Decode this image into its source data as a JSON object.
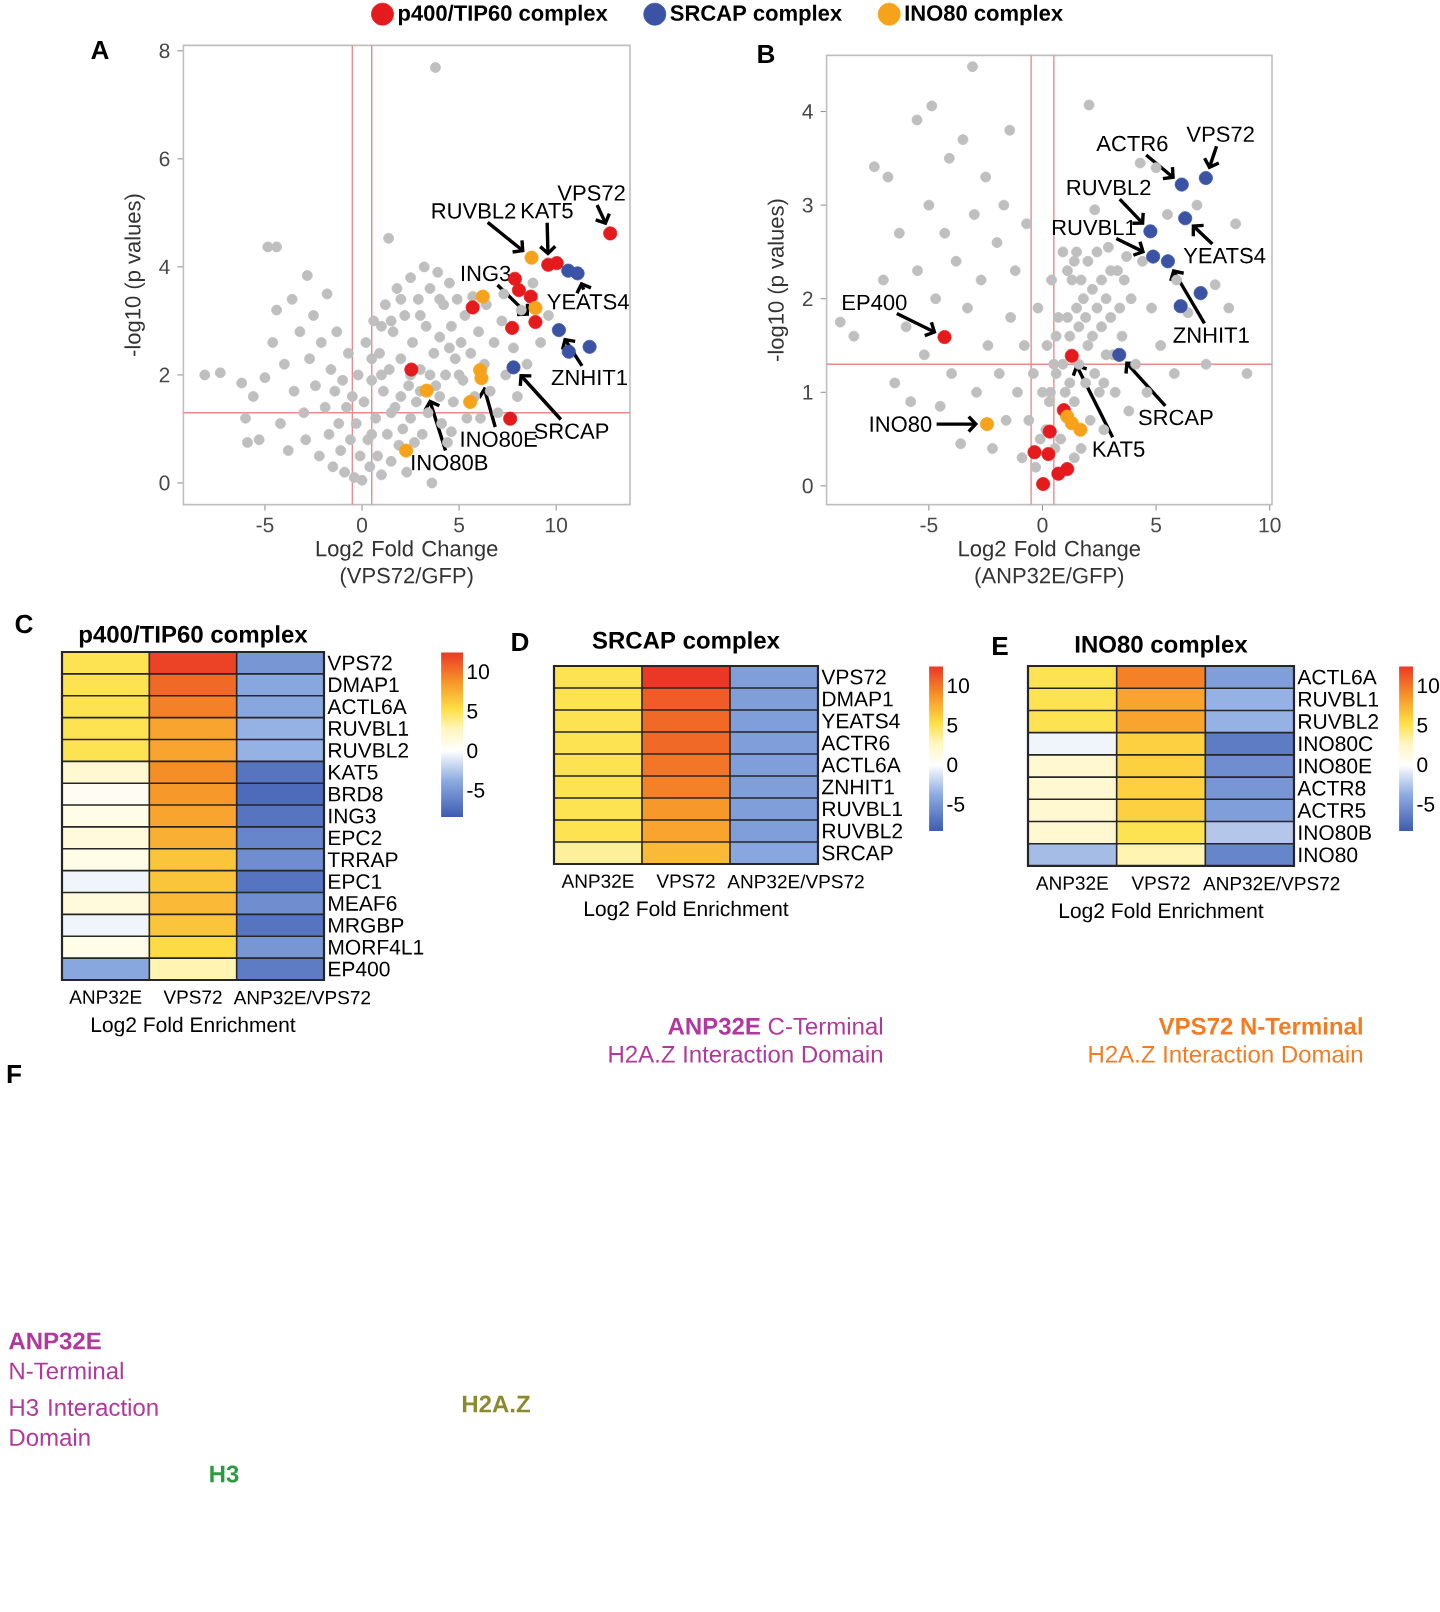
{
  "chart_data": [
    {
      "type": "scatter",
      "xlabel": "Log2 Fold Change (VPS72/GFP)",
      "ylabel": "-log10 (p values)",
      "xlim": [
        -9.2,
        13.8
      ],
      "ylim": [
        -0.4,
        8.1
      ],
      "xticks": [
        -5,
        0,
        5,
        10
      ],
      "yticks": [
        0,
        2,
        4,
        6,
        8
      ],
      "marker": "circle",
      "legend": "top",
      "ref_lines": [
        {
          "axis": "x",
          "value": -0.5,
          "color": "#f08a8a"
        },
        {
          "axis": "x",
          "value": 0.5,
          "color": "#f08a8a"
        },
        {
          "axis": "y",
          "value": 1.3,
          "color": "#f08a8a"
        }
      ],
      "annotations": [
        "A",
        {
          "text": "VPS72",
          "x": 12.78,
          "y": 4.62
        },
        {
          "text": "RUVBL2",
          "x": 8.73,
          "y": 4.17
        },
        {
          "text": "KAT5",
          "x": 9.59,
          "y": 4.04
        },
        {
          "text": "ING3",
          "x": 8.93,
          "y": 2.98
        },
        {
          "text": "YEATS4",
          "x": 11.1,
          "y": 3.88
        },
        {
          "text": "ZNHIT1",
          "x": 10.14,
          "y": 2.83
        },
        {
          "text": "SRCAP",
          "x": 7.8,
          "y": 2.14
        },
        {
          "text": "INO80E",
          "x": 6.15,
          "y": 1.94
        },
        {
          "text": "INO80B",
          "x": 3.33,
          "y": 1.71
        }
      ],
      "series": [
        {
          "color": "#bfbfbf",
          "x": [
            -8.1,
            -7.3,
            -6.2,
            -6.0,
            -5.9,
            -5.6,
            -5.3,
            -5.0,
            -4.85,
            -4.4,
            -4.6,
            -4.4,
            -4.2,
            -4.0,
            -3.8,
            -3.6,
            -3.5,
            -3.2,
            -3.0,
            -2.82,
            -2.9,
            -2.7,
            -2.5,
            -2.4,
            -2.2,
            -2.1,
            -1.9,
            -1.8,
            -1.7,
            -1.6,
            -1.5,
            -1.4,
            -1.3,
            -1.2,
            -1.1,
            -1.0,
            -0.9,
            -0.8,
            -0.7,
            -0.6,
            -0.5,
            -0.4,
            -0.3,
            -0.2,
            -0.1,
            0.0,
            0.1,
            0.2,
            0.3,
            0.4,
            0.5,
            0.6,
            0.7,
            0.8,
            0.9,
            1.0,
            1.1,
            1.2,
            1.3,
            1.37,
            1.4,
            1.5,
            1.6,
            1.7,
            1.8,
            1.9,
            2.0,
            2.1,
            2.2,
            2.3,
            2.4,
            2.5,
            2.6,
            2.7,
            2.8,
            2.9,
            3.0,
            3.1,
            3.2,
            3.3,
            3.4,
            3.5,
            3.6,
            3.7,
            3.78,
            3.8,
            3.9,
            4.0,
            4.1,
            4.2,
            4.3,
            4.4,
            4.5,
            4.6,
            4.7,
            4.8,
            4.9,
            4.6,
            5.1,
            5.2,
            5.3,
            5.4,
            5.6,
            5.7,
            5.8,
            6.0,
            6.1,
            6.3,
            6.4,
            6.6,
            6.8,
            7.0,
            7.2,
            7.4,
            7.3,
            7.8,
            8.0,
            8.2,
            8.5,
            8.8,
            9.2,
            9.6,
            0.5,
            1.0,
            1.5,
            2.0,
            2.5,
            3.0,
            3.5,
            4.0,
            4.5,
            1.0,
            2.0,
            3.0,
            4.0,
            2.5,
            5.0,
            0.5,
            1.5
          ],
          "values": [
            2.0,
            2.04,
            1.85,
            1.2,
            0.75,
            1.6,
            0.8,
            1.95,
            4.37,
            4.37,
            2.6,
            3.2,
            1.1,
            2.2,
            0.6,
            3.4,
            1.7,
            2.8,
            1.3,
            3.84,
            0.8,
            2.3,
            3.1,
            1.8,
            0.5,
            2.6,
            1.4,
            3.5,
            0.9,
            2.1,
            0.3,
            1.7,
            2.8,
            1.1,
            0.6,
            1.9,
            0.2,
            1.4,
            2.4,
            0.8,
            1.6,
            0.1,
            1.1,
            2.0,
            0.5,
            0.05,
            1.5,
            2.6,
            0.8,
            0.3,
            1.9,
            3.0,
            1.2,
            0.5,
            2.4,
            0.15,
            1.7,
            3.3,
            0.9,
            4.53,
            2.1,
            0.4,
            2.8,
            1.4,
            3.6,
            0.7,
            2.3,
            1.0,
            3.1,
            0.2,
            1.8,
            3.8,
            2.6,
            0.75,
            1.5,
            3.4,
            2.1,
            0.9,
            4.0,
            2.9,
            1.3,
            3.6,
            0.0,
            2.4,
            7.69,
            1.8,
            3.9,
            2.7,
            1.1,
            3.3,
            2.0,
            0.75,
            3.7,
            2.9,
            1.5,
            2.3,
            3.4,
            0.95,
            2.6,
            1.9,
            3.1,
            1.2,
            2.4,
            3.45,
            1.6,
            2.8,
            1.2,
            2.2,
            3.3,
            1.7,
            2.6,
            1.3,
            3.0,
            2.0,
            3.5,
            2.5,
            1.6,
            3.2,
            2.2,
            3.7,
            2.6,
            3.1,
            0.9,
            2.0,
            1.3,
            1.6,
            1.2,
            1.7,
            2.0,
            1.6,
            2.5,
            2.9,
            3.4,
            3.1,
            3.4,
            2.0,
            2.0,
            2.3,
            3.0
          ]
        },
        {
          "name": "p400/TIP60 complex",
          "color": "#e41a1c",
          "x": [
            12.78,
            9.59,
            10.03,
            7.87,
            8.08,
            8.69,
            5.7,
            8.93,
            7.73,
            2.54,
            7.63
          ],
          "values": [
            4.62,
            4.04,
            4.07,
            3.78,
            3.57,
            3.45,
            3.25,
            2.98,
            2.87,
            2.1,
            1.19
          ]
        },
        {
          "name": "SRCAP complex",
          "color": "#3a53a4",
          "x": [
            10.62,
            11.1,
            10.14,
            10.65,
            11.72,
            7.8
          ],
          "values": [
            3.93,
            3.88,
            2.83,
            2.43,
            2.52,
            2.14
          ]
        },
        {
          "name": "INO80 complex",
          "color": "#f7a21b",
          "x": [
            8.73,
            6.22,
            8.93,
            6.08,
            6.15,
            3.33,
            5.57,
            2.27
          ],
          "values": [
            4.17,
            3.45,
            3.24,
            2.09,
            1.94,
            1.71,
            1.5,
            0.6
          ]
        }
      ]
    },
    {
      "type": "scatter",
      "xlabel": "Log2 Fold Change (ANP32E/GFP)",
      "ylabel": "-log10 (p values)",
      "xlim": [
        -9.5,
        10.1
      ],
      "ylim": [
        -0.2,
        4.6
      ],
      "xticks": [
        -5,
        0,
        5,
        10
      ],
      "yticks": [
        0,
        1,
        2,
        3,
        4
      ],
      "marker": "circle",
      "ref_lines": [
        {
          "axis": "x",
          "value": -0.5,
          "color": "#f08a8a"
        },
        {
          "axis": "x",
          "value": 0.5,
          "color": "#f08a8a"
        },
        {
          "axis": "y",
          "value": 1.3,
          "color": "#f08a8a"
        }
      ],
      "annotations": [
        "B",
        {
          "text": "VPS72",
          "x": 7.19,
          "y": 3.29
        },
        {
          "text": "ACTR6",
          "x": 6.13,
          "y": 3.22
        },
        {
          "text": "RUVBL2",
          "x": 4.75,
          "y": 2.72
        },
        {
          "text": "RUVBL1",
          "x": 4.87,
          "y": 2.45
        },
        {
          "text": "YEATS4",
          "x": 6.28,
          "y": 2.86
        },
        {
          "text": "ZNHIT1",
          "x": 5.52,
          "y": 2.4
        },
        {
          "text": "EP400",
          "x": -4.31,
          "y": 1.59
        },
        {
          "text": "SRCAP",
          "x": 3.38,
          "y": 1.4
        },
        {
          "text": "KAT5",
          "x": 1.29,
          "y": 1.39
        },
        {
          "text": "INO80",
          "x": -2.44,
          "y": 0.66
        }
      ],
      "series": [
        {
          "color": "#bfbfbf",
          "x": [
            -8.9,
            -8.3,
            -7.4,
            -7.0,
            -6.8,
            -6.5,
            -6.3,
            -6.0,
            -5.8,
            -5.52,
            -5.5,
            -5.2,
            -5.0,
            -4.87,
            -4.7,
            -4.5,
            -4.3,
            -4.1,
            -4.0,
            -3.8,
            -3.6,
            -3.5,
            -3.3,
            -3.08,
            -3.0,
            -2.9,
            -2.7,
            -2.5,
            -2.4,
            -2.2,
            -2.0,
            -1.9,
            -1.7,
            -1.6,
            -1.44,
            -1.4,
            -1.2,
            -1.1,
            -0.9,
            -0.8,
            -0.7,
            -0.6,
            -0.4,
            -0.3,
            -0.2,
            -0.1,
            0.0,
            0.15,
            0.2,
            0.3,
            0.4,
            0.55,
            0.6,
            0.7,
            0.8,
            0.9,
            1.0,
            1.4,
            1.2,
            1.3,
            1.4,
            1.5,
            1.6,
            1.7,
            1.8,
            1.9,
            2.0,
            2.05,
            2.1,
            2.2,
            2.3,
            2.4,
            2.5,
            2.6,
            2.7,
            2.8,
            2.9,
            3.0,
            3.2,
            3.3,
            3.5,
            3.7,
            3.8,
            3.9,
            4.1,
            4.3,
            4.4,
            4.6,
            4.8,
            5.0,
            5.2,
            5.5,
            5.8,
            5.9,
            6.4,
            6.8,
            7.2,
            7.6,
            8.2,
            8.5,
            9.0,
            0.35,
            0.9,
            1.1,
            1.6,
            1.7,
            2.0,
            2.2,
            2.4,
            2.6,
            2.8,
            3.0,
            3.1,
            1.2,
            0.5,
            2.3,
            2.7,
            3.4,
            3.6,
            1.9,
            1.5,
            1.1,
            0.6,
            1.4
          ],
          "values": [
            1.75,
            1.6,
            3.41,
            2.2,
            3.3,
            1.1,
            2.7,
            1.7,
            0.9,
            3.91,
            2.3,
            1.4,
            3.0,
            4.06,
            2.0,
            0.85,
            2.7,
            3.5,
            1.2,
            2.4,
            0.45,
            3.7,
            1.9,
            4.48,
            2.9,
            1.0,
            2.2,
            3.3,
            1.5,
            0.4,
            2.6,
            1.2,
            3.0,
            0.7,
            3.8,
            1.8,
            2.3,
            1.0,
            0.3,
            1.5,
            2.8,
            0.7,
            1.2,
            0.2,
            1.9,
            0.5,
            1.0,
            0.6,
            1.5,
            0.9,
            2.2,
            0.4,
            1.2,
            1.8,
            0.5,
            2.5,
            1.0,
            0.3,
            1.6,
            2.2,
            0.9,
            2.5,
            1.3,
            0.4,
            2.0,
            1.1,
            2.4,
            4.07,
            0.7,
            1.6,
            2.95,
            1.9,
            1.0,
            2.2,
            0.6,
            1.4,
            2.55,
            1.8,
            1.0,
            2.3,
            1.6,
            2.45,
            0.8,
            2.0,
            1.3,
            3.45,
            2.4,
            1.0,
            1.9,
            3.4,
            1.5,
            2.9,
            1.2,
            2.2,
            1.85,
            3.0,
            1.3,
            2.15,
            1.9,
            2.8,
            1.2,
            1.0,
            1.3,
            1.8,
            1.7,
            2.2,
            1.5,
            2.1,
            2.5,
            1.7,
            2.0,
            2.3,
            1.4,
            1.1,
            1.3,
            1.2,
            1.1,
            1.9,
            2.2,
            1.8,
            1.9,
            2.3,
            1.6,
            2.4
          ]
        },
        {
          "color": "#e41a1c",
          "x": [
            -4.31,
            1.29,
            0.94,
            0.32,
            -0.35,
            0.26,
            1.09,
            0.7,
            0.03
          ],
          "values": [
            1.59,
            1.39,
            0.81,
            0.58,
            0.36,
            0.34,
            0.18,
            0.13,
            0.02
          ]
        },
        {
          "color": "#3a53a4",
          "x": [
            7.19,
            6.13,
            6.28,
            4.75,
            4.87,
            5.52,
            6.96,
            6.08,
            3.38
          ],
          "values": [
            3.29,
            3.22,
            2.86,
            2.72,
            2.45,
            2.4,
            2.06,
            1.92,
            1.4
          ]
        },
        {
          "color": "#f7a21b",
          "x": [
            -2.44,
            1.09,
            1.29,
            1.67
          ],
          "values": [
            0.66,
            0.74,
            0.67,
            0.6
          ]
        }
      ]
    },
    {
      "type": "heatmap",
      "title": "p400/TIP60 complex",
      "xlabel": "Log2 Fold Enrichment",
      "annotations": [
        "C"
      ],
      "categories": [
        "ANP32E",
        "VPS72",
        "ANP32E/VPS72"
      ],
      "y_categories": [
        "VPS72",
        "DMAP1",
        "ACTL6A",
        "RUVBL1",
        "RUVBL2",
        "KAT5",
        "BRD8",
        "ING3",
        "EPC2",
        "TRRAP",
        "EPC1",
        "MEAF6",
        "MRGBP",
        "MORF4L1",
        "EP400"
      ],
      "cells": [
        [
          5,
          12,
          -5
        ],
        [
          5,
          10.5,
          -4
        ],
        [
          5,
          9.5,
          -4
        ],
        [
          5,
          8,
          -3.5
        ],
        [
          5,
          8,
          -3.5
        ],
        [
          2,
          9,
          -7
        ],
        [
          0.5,
          8.5,
          -7.5
        ],
        [
          1,
          8,
          -7
        ],
        [
          1.5,
          7.5,
          -6
        ],
        [
          1,
          6.5,
          -5.5
        ],
        [
          -0.5,
          6.5,
          -7
        ],
        [
          1.5,
          7,
          -5.5
        ],
        [
          -0.5,
          6.5,
          -7
        ],
        [
          1,
          5.5,
          -5
        ],
        [
          -4,
          3,
          -6.5
        ]
      ],
      "clim": [
        -8.5,
        12.5
      ],
      "cticks": [
        -5,
        0,
        5,
        10
      ]
    },
    {
      "type": "heatmap",
      "title": "SRCAP complex",
      "xlabel": "Log2 Fold Enrichment",
      "annotations": [
        "D"
      ],
      "categories": [
        "ANP32E",
        "VPS72",
        "ANP32E/VPS72"
      ],
      "y_categories": [
        "VPS72",
        "DMAP1",
        "YEATS4",
        "ACTR6",
        "ACTL6A",
        "ZNHIT1",
        "RUVBL1",
        "RUVBL2",
        "SRCAP"
      ],
      "cells": [
        [
          5,
          12.5,
          -4.5
        ],
        [
          5,
          11,
          -4.5
        ],
        [
          5,
          10.5,
          -4.5
        ],
        [
          5,
          10.5,
          -4.5
        ],
        [
          5,
          10,
          -4.5
        ],
        [
          5,
          9.5,
          -4.5
        ],
        [
          5,
          8.5,
          -4.5
        ],
        [
          5,
          8,
          -4.5
        ],
        [
          3.5,
          7,
          -4
        ]
      ],
      "clim": [
        -8.5,
        12.5
      ],
      "cticks": [
        -5,
        0,
        5,
        10
      ]
    },
    {
      "type": "heatmap",
      "title": "INO80 complex",
      "xlabel": "Log2 Fold Enrichment",
      "annotations": [
        "E"
      ],
      "categories": [
        "ANP32E",
        "VPS72",
        "ANP32E/VPS72"
      ],
      "y_categories": [
        "ACTL6A",
        "RUVBL1",
        "RUVBL2",
        "INO80C",
        "INO80E",
        "ACTR8",
        "ACTR5",
        "INO80B",
        "INO80"
      ],
      "cells": [
        [
          5,
          9.5,
          -4.5
        ],
        [
          5,
          8,
          -3.5
        ],
        [
          5,
          8,
          -3.5
        ],
        [
          -0.5,
          6,
          -6.5
        ],
        [
          2,
          6,
          -5.5
        ],
        [
          2,
          6,
          -5
        ],
        [
          2,
          6,
          -4.5
        ],
        [
          2,
          5,
          -2.5
        ],
        [
          -3,
          3,
          -6
        ]
      ],
      "clim": [
        -8.5,
        12.5
      ],
      "cticks": [
        -5,
        0,
        5,
        10
      ]
    },
    {
      "type": "other",
      "annotations": [
        "F",
        "**ANP32E** C-Terminal",
        "H2A.Z Interaction Domain",
        "VPS72 N-Terminal",
        "H2A.Z Interaction Domain",
        "**ANP32E** N-Terminal",
        "H3 Interaction Domain",
        "H2A.Z",
        "H3"
      ]
    }
  ]
}
